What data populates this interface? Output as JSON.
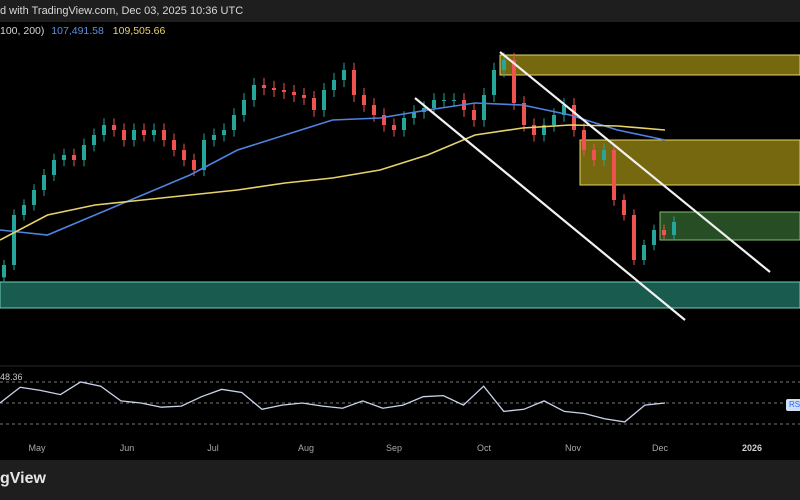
{
  "header": {
    "published_text": "d with TradingView.com, Dec 03, 2025 10:36 UTC"
  },
  "legend": {
    "ma_params": "100, 200)",
    "ma100_value": "107,491.58",
    "ma200_value": "109,505.66"
  },
  "rsi": {
    "value_label": "48.36",
    "tag": "RS"
  },
  "footer": {
    "brand": "gView"
  },
  "colors": {
    "up": "#26a69a",
    "down": "#ef5350",
    "ma100": "#4f83e0",
    "ma200": "#e8d36a",
    "rsi": "#c9d4ea"
  },
  "chart_data": [
    {
      "type": "candlestick",
      "xlabel": "",
      "ylabel": "",
      "time_ticks": [
        "May",
        "Jun",
        "Jul",
        "Aug",
        "Sep",
        "Oct",
        "Nov",
        "Dec",
        "2026"
      ],
      "closes": [
        82600,
        92600,
        94600,
        97600,
        100600,
        103600,
        104600,
        103600,
        106600,
        108600,
        110600,
        109600,
        107600,
        109600,
        108600,
        109600,
        107600,
        105600,
        103600,
        101600,
        107600,
        108600,
        109600,
        112600,
        115600,
        118600,
        118000,
        117600,
        117200,
        116600,
        116000,
        113600,
        117600,
        119600,
        121600,
        116600,
        114600,
        112600,
        110600,
        109600,
        112000,
        113200,
        114000,
        115600,
        115600,
        115600,
        113600,
        111600,
        116600,
        121600,
        123600,
        115000,
        110600,
        108600,
        110600,
        112600,
        114600,
        109600,
        105600,
        103600,
        105600,
        95600,
        92600,
        83600,
        86600,
        89600,
        88600,
        91200
      ],
      "series": [
        {
          "name": "MA 100",
          "values": [
            89600,
            88600,
            92600,
            96600,
            100600,
            105600,
            108600,
            111600,
            112000,
            113600,
            115000,
            114600,
            112600,
            109600,
            107600
          ]
        },
        {
          "name": "MA 200",
          "values": [
            87600,
            92600,
            94600,
            95600,
            96600,
            97600,
            99000,
            100000,
            101600,
            104600,
            108600,
            110000,
            110600,
            110400,
            109600
          ]
        }
      ],
      "zones": [
        {
          "kind": "supply",
          "color": "#8a7a10",
          "from_index": 50,
          "price_high": 124600,
          "price_low": 120600
        },
        {
          "kind": "supply",
          "color": "#8a7a10",
          "from_index": 58,
          "price_high": 107600,
          "price_low": 98600
        },
        {
          "kind": "resistance",
          "color": "#2e5a2a",
          "from_index": 66,
          "price_high": 93200,
          "price_low": 87600
        },
        {
          "kind": "support",
          "color": "#1f6b5e",
          "from_index": 0,
          "price_high": 79200,
          "price_low": 74000
        }
      ],
      "trendlines": [
        {
          "name": "channel-upper",
          "from": [
            50,
            125200
          ],
          "to": [
            77,
            81200
          ]
        },
        {
          "name": "channel-lower",
          "from": [
            41.5,
            116000
          ],
          "to": [
            68.5,
            71600
          ]
        }
      ]
    },
    {
      "type": "line",
      "name": "RSI",
      "levels": [
        70,
        50,
        30
      ],
      "values": [
        50,
        65,
        62,
        58,
        70,
        66,
        52,
        50,
        46,
        47,
        56,
        63,
        60,
        44,
        48,
        50,
        47,
        45,
        52,
        45,
        48,
        56,
        57,
        48,
        66,
        42,
        44,
        52,
        42,
        40,
        35,
        32,
        48,
        50
      ]
    }
  ]
}
